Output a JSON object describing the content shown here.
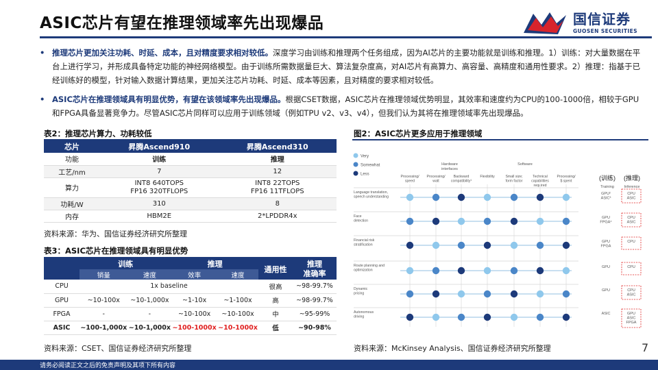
{
  "page": {
    "title": "ASIC芯片有望在推理领域率先出现爆品",
    "page_number": "7",
    "footer": "请务必阅读正文之后的免责声明及其项下所有内容"
  },
  "logo": {
    "cn": "国信证券",
    "en": "GUOSEN SECURITIES"
  },
  "paragraphs": [
    {
      "bullet": "•",
      "bold": "推理芯片更加关注功耗、时延、成本，且对精度要求相对较低。",
      "text": "深度学习由训练和推理两个任务组成，因为AI芯片的主要功能就是训练和推理。1）训练：对大量数据在平台上进行学习，并形成具备特定功能的神经网络模型。由于训练所需数据量巨大、算法复杂度高，对AI芯片有高算力、高容量、高精度和通用性要求。2）推理：指基于已经训练好的模型，针对输入数据计算结果，更加关注芯片功耗、时延、成本等因素，且对精度的要求相对较低。"
    },
    {
      "bullet": "•",
      "bold": "ASIC芯片在推理领域具有明显优势，有望在该领域率先出现爆品。",
      "text": "根据CSET数据，ASIC芯片在推理领域优势明显，其效率和速度约为CPU的100-1000倍，相较于GPU和FPGA具备显著竞争力。尽管ASIC芯片同样可以应用于训练领域（例如TPU v2、v3、v4），但我们认为其将在推理领域率先出现爆品。"
    }
  ],
  "table2": {
    "caption": "表2：推理芯片算力、功耗较低",
    "headers": [
      "芯片",
      "昇腾Ascend910",
      "昇腾Ascend310"
    ],
    "rows": [
      [
        "功能",
        "训练",
        "推理"
      ],
      [
        "工艺/nm",
        "7",
        "12"
      ],
      [
        "算力",
        "INT8 640TOPS\nFP16 320TFLOPS",
        "INT8 22TOPS\nFP16 11TFLOPS"
      ],
      [
        "功耗/W",
        "310",
        "8"
      ],
      [
        "内存",
        "HBM2E",
        "2*LPDDR4x"
      ]
    ],
    "source": "资料来源：华为、国信证券经济研究所整理"
  },
  "table3": {
    "caption": "表3：ASIC芯片在推理领域具有明显优势",
    "group_headers": {
      "train": "训练",
      "infer": "推理",
      "general": "通用性",
      "acc": "推理\n准确率"
    },
    "sub_headers": [
      "销量",
      "速度",
      "效率",
      "速度"
    ],
    "rows": [
      {
        "chip": "CPU",
        "merged": "1x baseline",
        "general": "很高",
        "acc": "~98-99.7%"
      },
      {
        "chip": "GPU",
        "cells": [
          "~10-100x",
          "~10-1,000x",
          "~1-10x",
          "~1-100x"
        ],
        "general": "高",
        "acc": "~98-99.7%"
      },
      {
        "chip": "FPGA",
        "cells": [
          "-",
          "-",
          "~10-100x",
          "~10-100x"
        ],
        "general": "中",
        "acc": "~95-99%"
      },
      {
        "chip": "ASIC",
        "cells": [
          "~100-1,000x",
          "~10-1,000x",
          "~100-1000x",
          "~10-1000x"
        ],
        "general": "低",
        "acc": "~90-98%"
      }
    ],
    "source": "资料来源：CSET、国信证券经济研究所整理"
  },
  "figure2": {
    "caption": "图2：ASIC芯片更多应用于推理领域",
    "legend": [
      "Very",
      "Somewhat",
      "Less"
    ],
    "columns": [
      "Processing/\nspeed",
      "Processing/\nwatt",
      "Backward\ncompatibility¹",
      "Flexibility",
      "Small size;\nform factor",
      "Technical\ncapabilities\nrequired",
      "Processing/\n$ spent"
    ],
    "col_groups": [
      "Hardware\ninterfaces",
      "Software"
    ],
    "rows": [
      "Language translation,\nspeech understanding",
      "Face\ndetection",
      "Financial risk\nstratification",
      "Route planning and\noptimization",
      "Dynamic\npricing",
      "Autonomous\ndriving"
    ],
    "right_header": {
      "train_cn": "(训练)",
      "infer_cn": "(推理)",
      "train": "Training",
      "infer": "Inference"
    },
    "right_cells": [
      {
        "train": "GPU²\nASIC³",
        "infer": "CPU\nASIC"
      },
      {
        "train": "GPU\nFPGA⁴",
        "infer": "CPU\nASIC"
      },
      {
        "train": "GPU\nFPGA",
        "infer": "CPU"
      },
      {
        "train": "GPU",
        "infer": "CPU"
      },
      {
        "train": "GPU",
        "infer": "CPU\nASIC"
      },
      {
        "train": "ASIC",
        "infer": "GPU\nASIC\nFPGA"
      }
    ],
    "source": "资料来源：McKinsey Analysis、国信证券经济研究所整理"
  },
  "colors": {
    "brand": "#1d3a7a",
    "red": "#e02020",
    "dot_very": "#8fc8ec",
    "dot_somewhat": "#4a86c8",
    "dot_less": "#1d3a7a"
  }
}
